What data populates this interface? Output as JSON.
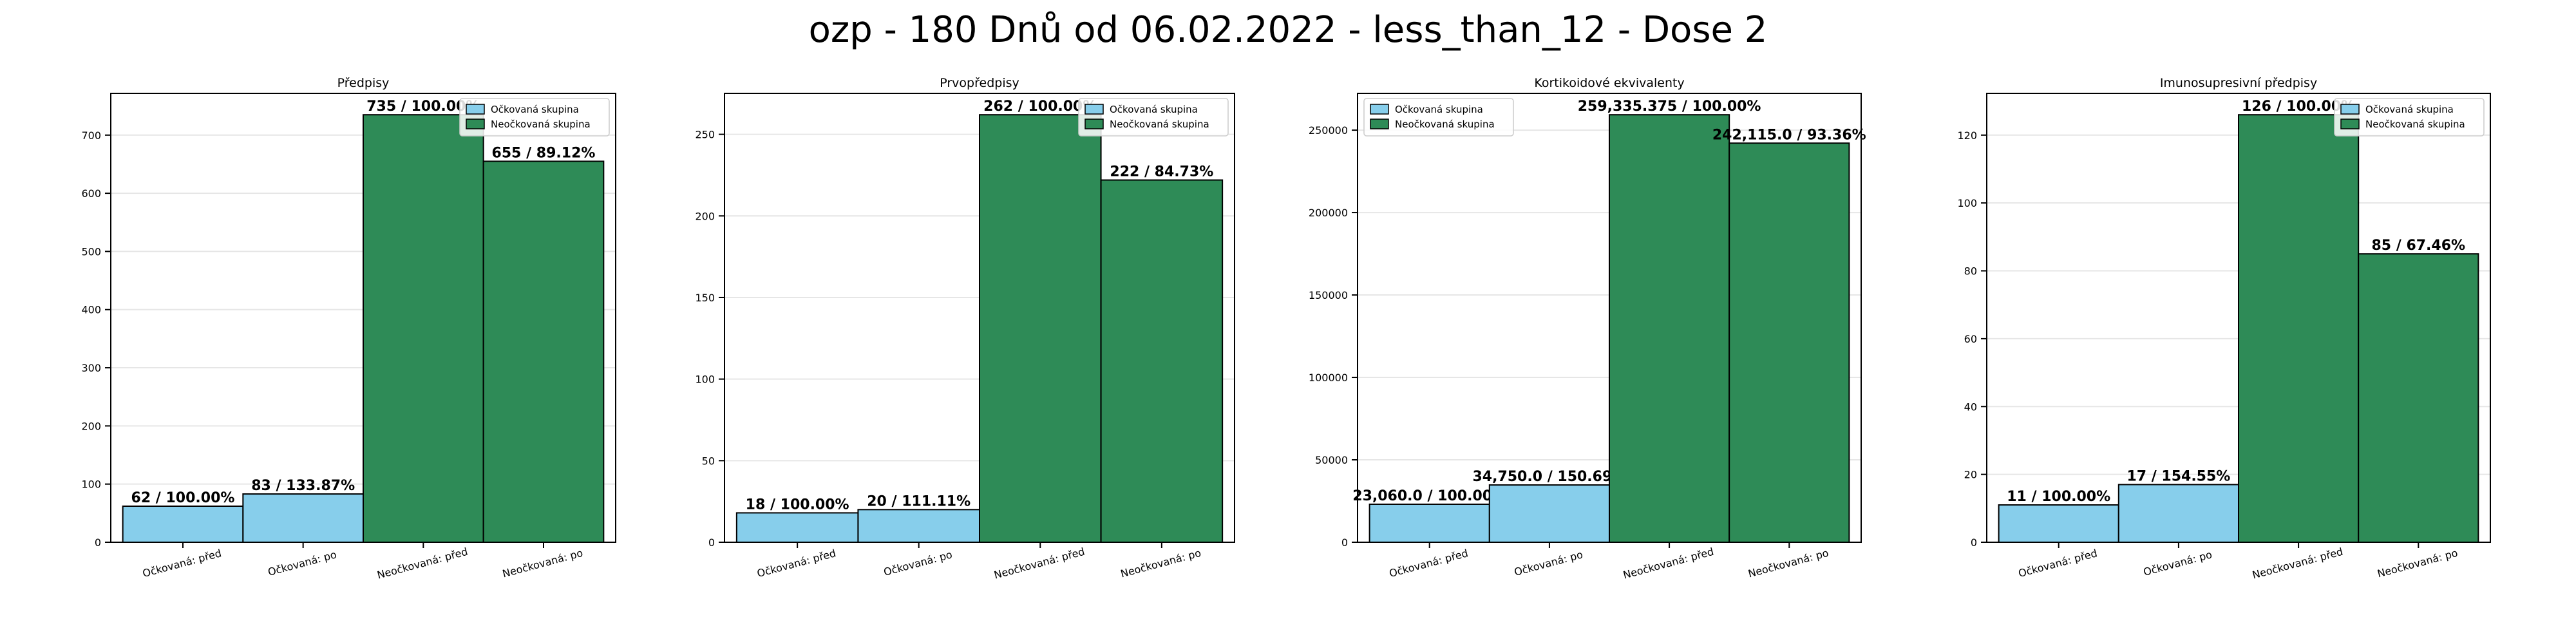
{
  "suptitle": "ozp - 180 Dnů od 06.02.2022 - less_than_12 - Dose 2",
  "colors": {
    "vaccinated": "#87ceeb",
    "unvaccinated": "#2e8b57",
    "edge": "#000000",
    "grid": "#e6e6e6"
  },
  "chart_data": [
    {
      "type": "bar",
      "title": "Předpisy",
      "categories": [
        "Očkovaná: před",
        "Očkovaná: po",
        "Neočkovaná: před",
        "Neočkovaná: po"
      ],
      "values": [
        62,
        83,
        735,
        655
      ],
      "labels": [
        "62 / 100.00%",
        "83 / 133.87%",
        "735 / 100.00%",
        "655 / 89.12%"
      ],
      "series_index": [
        0,
        0,
        1,
        1
      ],
      "legend": [
        "Očkovaná skupina",
        "Neočkovaná skupina"
      ],
      "legend_position": "upper right",
      "ylim": [
        0,
        771.75
      ],
      "yticks": [
        0,
        100,
        200,
        300,
        400,
        500,
        600,
        700
      ],
      "ytick_labels": [
        "0",
        "100",
        "200",
        "300",
        "400",
        "500",
        "600",
        "700"
      ],
      "grid": "y"
    },
    {
      "type": "bar",
      "title": "Prvopředpisy",
      "categories": [
        "Očkovaná: před",
        "Očkovaná: po",
        "Neočkovaná: před",
        "Neočkovaná: po"
      ],
      "values": [
        18,
        20,
        262,
        222
      ],
      "labels": [
        "18 / 100.00%",
        "20 / 111.11%",
        "262 / 100.00%",
        "222 / 84.73%"
      ],
      "series_index": [
        0,
        0,
        1,
        1
      ],
      "legend": [
        "Očkovaná skupina",
        "Neočkovaná skupina"
      ],
      "legend_position": "upper right",
      "ylim": [
        0,
        275.1
      ],
      "yticks": [
        0,
        50,
        100,
        150,
        200,
        250
      ],
      "ytick_labels": [
        "0",
        "50",
        "100",
        "150",
        "200",
        "250"
      ],
      "grid": "y"
    },
    {
      "type": "bar",
      "title": "Kortikoidové ekvivalenty",
      "categories": [
        "Očkovaná: před",
        "Očkovaná: po",
        "Neočkovaná: před",
        "Neočkovaná: po"
      ],
      "values": [
        23060.0,
        34750.0,
        259335.375,
        242115.0
      ],
      "labels": [
        "23,060.0 / 100.00%",
        "34,750.0 / 150.69%",
        "259,335.375 / 100.00%",
        "242,115.0 / 93.36%"
      ],
      "series_index": [
        0,
        0,
        1,
        1
      ],
      "legend": [
        "Očkovaná skupina",
        "Neočkovaná skupina"
      ],
      "legend_position": "upper left",
      "ylim": [
        0,
        272302
      ],
      "yticks": [
        0,
        50000,
        100000,
        150000,
        200000,
        250000
      ],
      "ytick_labels": [
        "0",
        "50000",
        "100000",
        "150000",
        "200000",
        "250000"
      ],
      "grid": "y"
    },
    {
      "type": "bar",
      "title": "Imunosupresivní předpisy",
      "categories": [
        "Očkovaná: před",
        "Očkovaná: po",
        "Neočkovaná: před",
        "Neočkovaná: po"
      ],
      "values": [
        11,
        17,
        126,
        85
      ],
      "labels": [
        "11 / 100.00%",
        "17 / 154.55%",
        "126 / 100.00%",
        "85 / 67.46%"
      ],
      "series_index": [
        0,
        0,
        1,
        1
      ],
      "legend": [
        "Očkovaná skupina",
        "Neočkovaná skupina"
      ],
      "legend_position": "upper right",
      "ylim": [
        0,
        132.3
      ],
      "yticks": [
        0,
        20,
        40,
        60,
        80,
        100,
        120
      ],
      "ytick_labels": [
        "0",
        "20",
        "40",
        "60",
        "80",
        "100",
        "120"
      ],
      "grid": "y"
    }
  ]
}
